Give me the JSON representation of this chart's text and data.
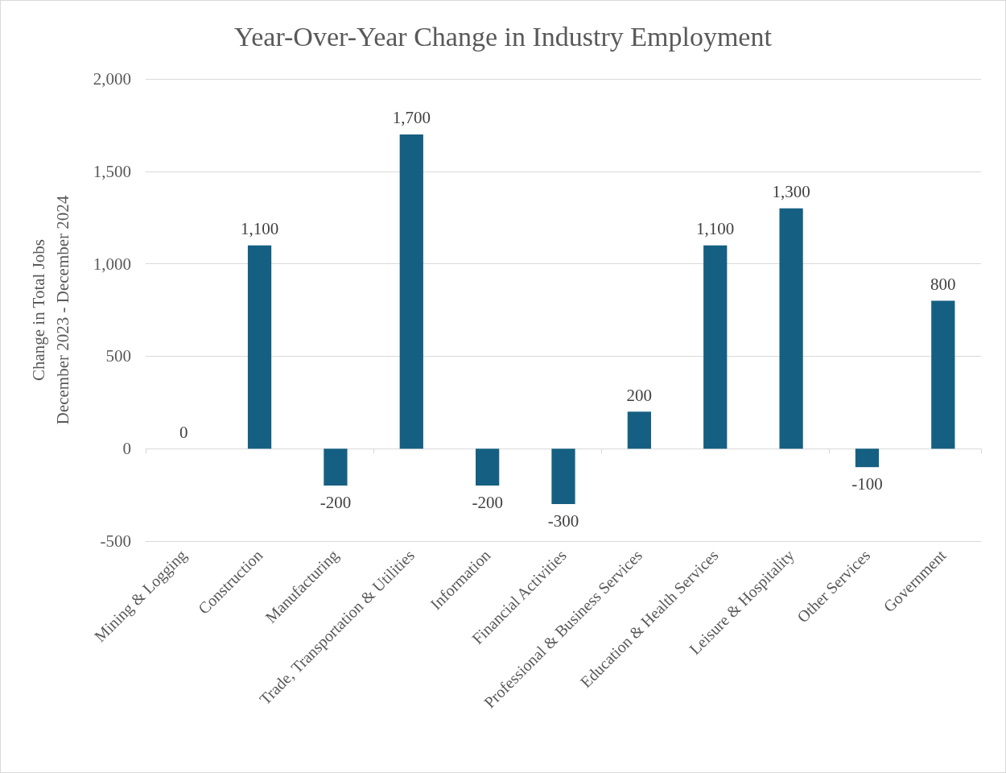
{
  "chart_data": {
    "type": "bar",
    "title": "Year-Over-Year Change in Industry Employment",
    "ylabel": "Change in Total Jobs\nDecember 2023 - December 2024",
    "categories": [
      "Mining & Logging",
      "Construction",
      "Manufacturing",
      "Trade, Transportation & Utilities",
      "Information",
      "Financial Activities",
      "Professional & Business Services",
      "Education & Health Services",
      "Leisure & Hospitality",
      "Other Services",
      "Government"
    ],
    "values": [
      0,
      1100,
      -200,
      1700,
      -200,
      -300,
      200,
      1100,
      1300,
      -100,
      800
    ],
    "value_labels": [
      "0",
      "1,100",
      "-200",
      "1,700",
      "-200",
      "-300",
      "200",
      "1,100",
      "1,300",
      "-100",
      "800"
    ],
    "color": "#156082",
    "ylim": [
      -500,
      2000
    ],
    "yticks": [
      {
        "value": -500,
        "label": "-500"
      },
      0,
      500,
      {
        "value": 1000,
        "label": "1,000"
      },
      {
        "value": 1500,
        "label": "1,500"
      },
      {
        "value": 2000,
        "label": "2,000"
      }
    ],
    "grid": "y"
  }
}
